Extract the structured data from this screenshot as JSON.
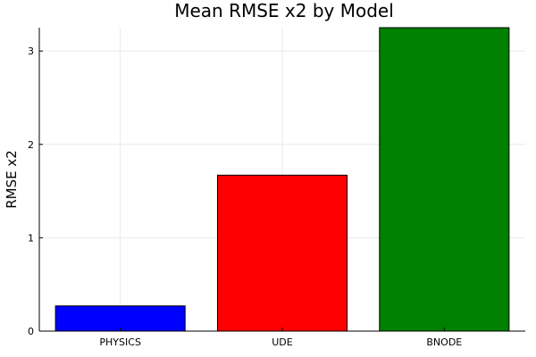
{
  "chart_data": {
    "type": "bar",
    "title": "Mean RMSE x2 by Model",
    "xlabel": "",
    "ylabel": "RMSE x2",
    "categories": [
      "PHYSICS",
      "UDE",
      "BNODE"
    ],
    "values": [
      0.27,
      1.67,
      3.25
    ],
    "colors": [
      "#0000ff",
      "#ff0000",
      "#008000"
    ],
    "ylim": [
      0,
      3.25
    ],
    "yticks": [
      0,
      1,
      2,
      3
    ],
    "grid": true,
    "legend": "none"
  }
}
